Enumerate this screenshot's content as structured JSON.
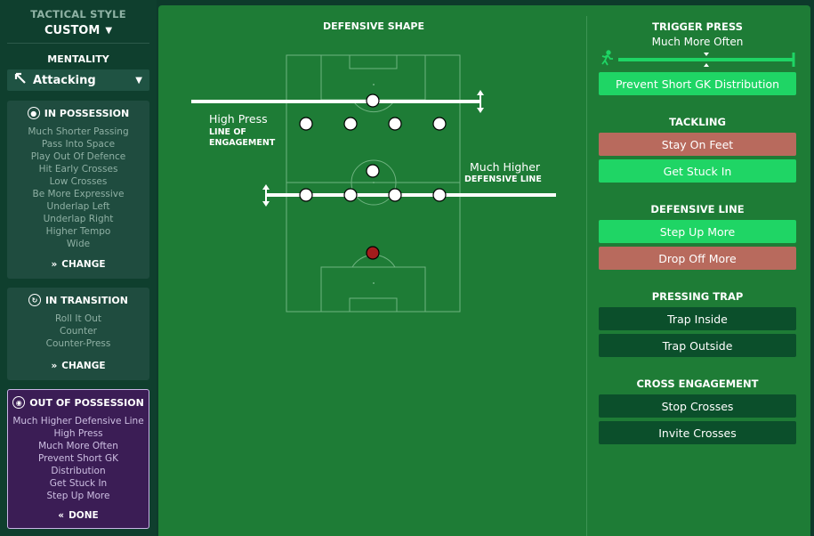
{
  "sidebar": {
    "tactical_style_label": "TACTICAL STYLE",
    "tactical_style_value": "CUSTOM",
    "mentality_label": "MENTALITY",
    "mentality_value": "Attacking",
    "in_possession": {
      "title": "IN POSSESSION",
      "items": [
        "Much Shorter Passing",
        "Pass Into Space",
        "Play Out Of Defence",
        "Hit Early Crosses",
        "Low Crosses",
        "Be More Expressive",
        "Underlap Left",
        "Underlap Right",
        "Higher Tempo",
        "Wide"
      ],
      "button": "CHANGE"
    },
    "in_transition": {
      "title": "IN TRANSITION",
      "items": [
        "Roll It Out",
        "Counter",
        "Counter-Press"
      ],
      "button": "CHANGE"
    },
    "out_of_possession": {
      "title": "OUT OF POSSESSION",
      "items": [
        "Much Higher Defensive Line",
        "High Press",
        "Much More Often",
        "Prevent Short GK",
        "Distribution",
        "Get Stuck In",
        "Step Up More"
      ],
      "button": "DONE"
    }
  },
  "pitch": {
    "title": "DEFENSIVE SHAPE",
    "engagement_value": "High Press",
    "engagement_label_1": "LINE OF",
    "engagement_label_2": "ENGAGEMENT",
    "defline_value": "Much Higher",
    "defline_label": "DEFENSIVE LINE"
  },
  "options": {
    "trigger_press": {
      "title": "TRIGGER PRESS",
      "value": "Much More Often",
      "level": 1.0,
      "buttons": [
        {
          "label": "Prevent Short GK Distribution",
          "state": "selected"
        }
      ]
    },
    "tackling": {
      "title": "TACKLING",
      "buttons": [
        {
          "label": "Stay On Feet",
          "state": "unavailable"
        },
        {
          "label": "Get Stuck In",
          "state": "selected"
        }
      ]
    },
    "defensive_line": {
      "title": "DEFENSIVE LINE",
      "buttons": [
        {
          "label": "Step Up More",
          "state": "selected"
        },
        {
          "label": "Drop Off More",
          "state": "unavailable"
        }
      ]
    },
    "pressing_trap": {
      "title": "PRESSING TRAP",
      "buttons": [
        {
          "label": "Trap Inside",
          "state": "off"
        },
        {
          "label": "Trap Outside",
          "state": "off"
        }
      ]
    },
    "cross_engagement": {
      "title": "CROSS ENGAGEMENT",
      "buttons": [
        {
          "label": "Stop Crosses",
          "state": "off"
        },
        {
          "label": "Invite Crosses",
          "state": "off"
        }
      ]
    }
  },
  "colors": {
    "selected": "#1fd565",
    "unavailable": "#b86a5d",
    "off": "#0b4f2b",
    "pitch": "#1e7c36",
    "out_of_possession_panel": "#3b1d55",
    "goalkeeper": "#a31c1c"
  }
}
